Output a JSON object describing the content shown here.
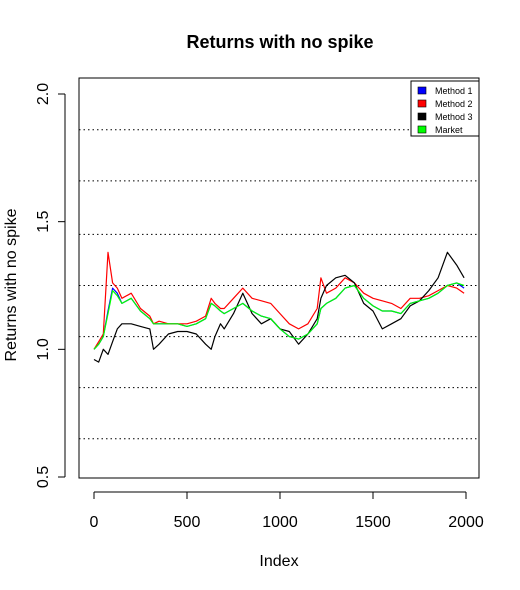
{
  "chart_data": {
    "type": "line",
    "title": "Returns with no spike",
    "xlabel": "Index",
    "ylabel": "Returns with no spike",
    "xlim": [
      0,
      2000
    ],
    "ylim": [
      0.5,
      2.0
    ],
    "x_ticks": [
      "0",
      "500",
      "1000",
      "1500",
      "2000"
    ],
    "y_ticks": [
      "0.5",
      "1.0",
      "1.5",
      "2.0"
    ],
    "reference_lines": [
      0.65,
      0.85,
      1.05,
      1.25,
      1.45,
      1.66,
      1.86
    ],
    "legend_position": "top-right",
    "x": [
      0,
      25,
      50,
      75,
      100,
      125,
      150,
      200,
      250,
      300,
      320,
      350,
      400,
      450,
      500,
      550,
      600,
      630,
      650,
      680,
      700,
      750,
      800,
      850,
      900,
      950,
      1000,
      1050,
      1100,
      1150,
      1200,
      1220,
      1250,
      1300,
      1350,
      1400,
      1450,
      1500,
      1550,
      1600,
      1650,
      1700,
      1750,
      1800,
      1850,
      1900,
      1950,
      1990
    ],
    "series": [
      {
        "name": "Method 1",
        "color": "#0000ff",
        "values": [
          1.0,
          1.02,
          1.05,
          1.15,
          1.24,
          1.22,
          1.18,
          1.2,
          1.15,
          1.12,
          1.1,
          1.1,
          1.1,
          1.1,
          1.09,
          1.1,
          1.12,
          1.18,
          1.17,
          1.15,
          1.14,
          1.16,
          1.18,
          1.15,
          1.13,
          1.12,
          1.08,
          1.05,
          1.04,
          1.06,
          1.1,
          1.16,
          1.18,
          1.2,
          1.24,
          1.25,
          1.2,
          1.17,
          1.15,
          1.15,
          1.14,
          1.18,
          1.19,
          1.2,
          1.22,
          1.25,
          1.26,
          1.24
        ]
      },
      {
        "name": "Method 2",
        "color": "#ff0000",
        "values": [
          1.0,
          1.03,
          1.06,
          1.38,
          1.26,
          1.24,
          1.2,
          1.22,
          1.16,
          1.13,
          1.1,
          1.11,
          1.1,
          1.1,
          1.1,
          1.11,
          1.13,
          1.2,
          1.18,
          1.16,
          1.16,
          1.2,
          1.24,
          1.2,
          1.19,
          1.18,
          1.14,
          1.1,
          1.08,
          1.1,
          1.16,
          1.28,
          1.22,
          1.24,
          1.28,
          1.26,
          1.22,
          1.2,
          1.19,
          1.18,
          1.16,
          1.2,
          1.2,
          1.21,
          1.23,
          1.25,
          1.24,
          1.22
        ]
      },
      {
        "name": "Method 3",
        "color": "#000000",
        "values": [
          0.96,
          0.95,
          1.0,
          0.98,
          1.03,
          1.08,
          1.1,
          1.1,
          1.09,
          1.08,
          1.0,
          1.02,
          1.06,
          1.07,
          1.07,
          1.06,
          1.02,
          1.0,
          1.05,
          1.1,
          1.08,
          1.14,
          1.22,
          1.14,
          1.1,
          1.12,
          1.08,
          1.07,
          1.02,
          1.06,
          1.12,
          1.2,
          1.25,
          1.28,
          1.29,
          1.26,
          1.18,
          1.15,
          1.08,
          1.1,
          1.12,
          1.17,
          1.19,
          1.23,
          1.28,
          1.38,
          1.33,
          1.28
        ]
      },
      {
        "name": "Market",
        "color": "#00ff00",
        "values": [
          1.0,
          1.02,
          1.05,
          1.14,
          1.23,
          1.21,
          1.18,
          1.2,
          1.15,
          1.12,
          1.1,
          1.1,
          1.1,
          1.1,
          1.09,
          1.1,
          1.12,
          1.18,
          1.17,
          1.15,
          1.14,
          1.16,
          1.18,
          1.15,
          1.13,
          1.12,
          1.08,
          1.05,
          1.04,
          1.06,
          1.1,
          1.16,
          1.18,
          1.2,
          1.24,
          1.25,
          1.2,
          1.17,
          1.15,
          1.15,
          1.14,
          1.18,
          1.19,
          1.2,
          1.22,
          1.25,
          1.26,
          1.25
        ]
      }
    ]
  }
}
